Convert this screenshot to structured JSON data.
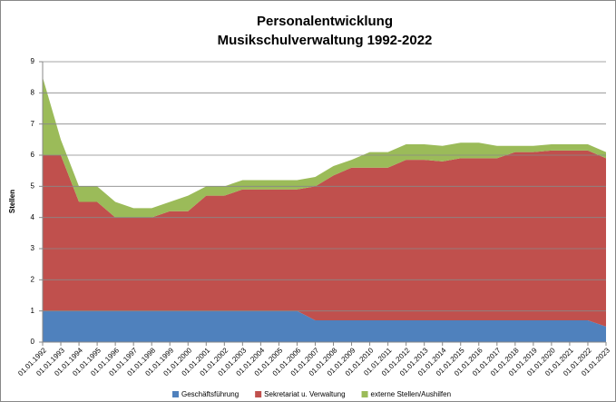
{
  "chart_data": {
    "type": "area",
    "stacked": true,
    "title": [
      "Personalentwicklung",
      "Musikschulverwaltung 1992-2022"
    ],
    "y_label": "Stellen",
    "categories": [
      "01.01.1992",
      "01.01.1993",
      "01.01.1994",
      "01.01.1995",
      "01.01.1996",
      "01.01.1997",
      "01.01.1998",
      "01.01.1999",
      "01.01.2000",
      "01.01.2001",
      "01.01.2002",
      "01.01.2003",
      "01.01.2004",
      "01.01.2005",
      "01.01.2006",
      "01.01.2007",
      "01.01.2008",
      "01.01.2009",
      "01.01.2010",
      "01.01.2011",
      "01.01.2012",
      "01.01.2013",
      "01.01.2014",
      "01.01.2015",
      "01.01.2016",
      "01.01.2017",
      "01.01.2018",
      "01.01.2019",
      "01.01.2020",
      "01.01.2021",
      "01.01.2022",
      "01.01.2023"
    ],
    "series": [
      {
        "name": "Geschäftsführung",
        "color": "#4f81bd",
        "values": [
          1,
          1,
          1,
          1,
          1,
          1,
          1,
          1,
          1,
          1,
          1,
          1,
          1,
          1,
          1,
          0.7,
          0.7,
          0.7,
          0.7,
          0.7,
          0.7,
          0.7,
          0.7,
          0.7,
          0.7,
          0.7,
          0.7,
          0.7,
          0.7,
          0.7,
          0.7,
          0.5
        ]
      },
      {
        "name": "Sekretariat u. Verwaltung",
        "color": "#c0504d",
        "values": [
          5,
          5,
          3.5,
          3.5,
          3,
          3,
          3,
          3.2,
          3.2,
          3.7,
          3.7,
          3.9,
          3.9,
          3.9,
          3.9,
          4.3,
          4.65,
          4.9,
          4.9,
          4.9,
          5.15,
          5.15,
          5.1,
          5.2,
          5.2,
          5.2,
          5.4,
          5.4,
          5.45,
          5.45,
          5.45,
          5.4
        ]
      },
      {
        "name": "externe Stellen/Aushilfen",
        "color": "#9bbb59",
        "values": [
          2.5,
          0.5,
          0.5,
          0.5,
          0.5,
          0.3,
          0.3,
          0.3,
          0.5,
          0.3,
          0.3,
          0.3,
          0.3,
          0.3,
          0.3,
          0.3,
          0.3,
          0.25,
          0.5,
          0.5,
          0.5,
          0.5,
          0.5,
          0.5,
          0.5,
          0.4,
          0.2,
          0.2,
          0.2,
          0.2,
          0.2,
          0.2
        ]
      }
    ],
    "ylim": [
      0,
      9
    ],
    "yticks": [
      0,
      1,
      2,
      3,
      4,
      5,
      6,
      7,
      8,
      9
    ],
    "grid": true,
    "legend": "bottom"
  }
}
